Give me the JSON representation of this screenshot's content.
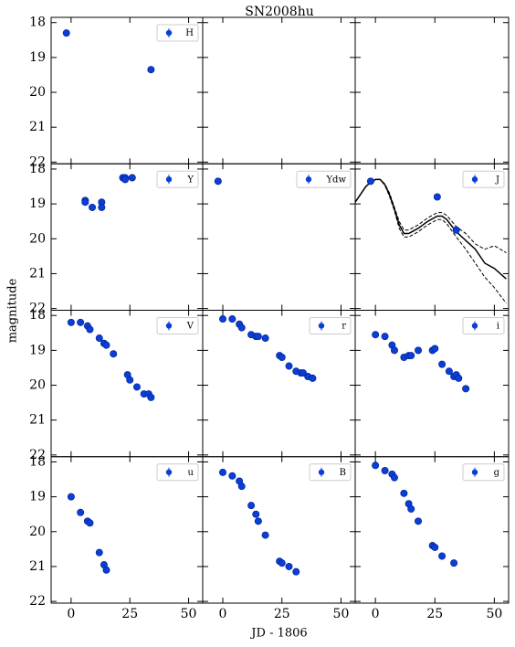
{
  "chart_data": {
    "type": "scatter",
    "title": "SN2008hu",
    "xlabel": "JD - 1806",
    "ylabel": "magnitude",
    "xlim": [
      -8.5,
      56
    ],
    "ylim": [
      22.05,
      17.85
    ],
    "xticks": [
      0,
      25,
      50
    ],
    "yticks": [
      18,
      19,
      20,
      21,
      22
    ],
    "panels": [
      {
        "series": [
          {
            "name": "H",
            "color": "#0a3fd6",
            "x": [
              -2,
              34
            ],
            "values": [
              18.3,
              19.35
            ]
          }
        ]
      },
      {
        "series": []
      },
      {
        "series": []
      },
      {
        "series": [
          {
            "name": "Y",
            "color": "#0a3fd6",
            "x": [
              6,
              6,
              9,
              13,
              13,
              22,
              23,
              23,
              26
            ],
            "values": [
              18.9,
              18.95,
              19.1,
              18.95,
              19.1,
              18.25,
              18.25,
              18.3,
              18.25
            ]
          }
        ]
      },
      {
        "series": [
          {
            "name": "Ydw",
            "color": "#0a3fd6",
            "x": [
              -2
            ],
            "values": [
              18.35
            ]
          }
        ]
      },
      {
        "series": [
          {
            "name": "J",
            "color": "#0a3fd6",
            "x": [
              -2,
              26,
              34
            ],
            "values": [
              18.35,
              18.8,
              19.75
            ]
          }
        ],
        "models": [
          {
            "style": "solid",
            "color": "#000000",
            "x": [
              -8.5,
              -6,
              -4,
              -2,
              0,
              2,
              4,
              6,
              8,
              10,
              12,
              14,
              18,
              22,
              26,
              28,
              30,
              34,
              38,
              42,
              46,
              50,
              55
            ],
            "values": [
              18.95,
              18.7,
              18.5,
              18.38,
              18.3,
              18.3,
              18.45,
              18.75,
              19.15,
              19.6,
              19.85,
              19.85,
              19.7,
              19.5,
              19.35,
              19.35,
              19.45,
              19.8,
              20.05,
              20.3,
              20.7,
              20.85,
              21.15
            ]
          },
          {
            "style": "dashed",
            "color": "#000000",
            "x": [
              -8.5,
              -6,
              -4,
              -2,
              0,
              2,
              4,
              6,
              8,
              10,
              12,
              14,
              18,
              22,
              26,
              28,
              30,
              34,
              38,
              42,
              46,
              50,
              55
            ],
            "values": [
              18.95,
              18.7,
              18.5,
              18.38,
              18.3,
              18.3,
              18.43,
              18.7,
              19.1,
              19.5,
              19.75,
              19.75,
              19.6,
              19.4,
              19.25,
              19.25,
              19.33,
              19.65,
              19.85,
              20.15,
              20.3,
              20.2,
              20.4
            ]
          },
          {
            "style": "dashed",
            "color": "#000000",
            "x": [
              -8.5,
              -6,
              -4,
              -2,
              0,
              2,
              4,
              6,
              8,
              10,
              12,
              14,
              18,
              22,
              26,
              28,
              30,
              34,
              38,
              42,
              46,
              50,
              55
            ],
            "values": [
              18.95,
              18.7,
              18.5,
              18.38,
              18.3,
              18.3,
              18.47,
              18.8,
              19.2,
              19.7,
              19.95,
              19.95,
              19.8,
              19.6,
              19.45,
              19.45,
              19.57,
              19.95,
              20.3,
              20.7,
              21.1,
              21.4,
              21.85
            ]
          }
        ]
      },
      {
        "series": [
          {
            "name": "V",
            "color": "#0a3fd6",
            "x": [
              0,
              4,
              7,
              8,
              12,
              14,
              15,
              18,
              24,
              25,
              28,
              31,
              33,
              34
            ],
            "values": [
              18.2,
              18.2,
              18.3,
              18.4,
              18.65,
              18.8,
              18.85,
              19.1,
              19.7,
              19.85,
              20.05,
              20.25,
              20.25,
              20.35
            ]
          }
        ]
      },
      {
        "series": [
          {
            "name": "r",
            "color": "#0a3fd6",
            "x": [
              0,
              4,
              7,
              8,
              12,
              14,
              15,
              18,
              24,
              25,
              28,
              31,
              33,
              34,
              36,
              38
            ],
            "values": [
              18.1,
              18.1,
              18.25,
              18.35,
              18.55,
              18.6,
              18.6,
              18.65,
              19.15,
              19.2,
              19.45,
              19.6,
              19.65,
              19.65,
              19.75,
              19.8
            ]
          }
        ]
      },
      {
        "series": [
          {
            "name": "i",
            "color": "#0a3fd6",
            "x": [
              0,
              4,
              7,
              8,
              12,
              14,
              15,
              18,
              24,
              25,
              28,
              31,
              33,
              34,
              35,
              38
            ],
            "values": [
              18.55,
              18.6,
              18.85,
              19.0,
              19.2,
              19.15,
              19.15,
              19.0,
              19.0,
              18.95,
              19.4,
              19.6,
              19.75,
              19.7,
              19.8,
              20.1
            ]
          }
        ]
      },
      {
        "series": [
          {
            "name": "u",
            "color": "#0a3fd6",
            "x": [
              0,
              4,
              7,
              8,
              12,
              14,
              15
            ],
            "values": [
              19.0,
              19.45,
              19.7,
              19.75,
              20.6,
              20.95,
              21.1
            ]
          }
        ]
      },
      {
        "series": [
          {
            "name": "B",
            "color": "#0a3fd6",
            "x": [
              0,
              4,
              7,
              8,
              12,
              14,
              15,
              18,
              24,
              25,
              28,
              31
            ],
            "values": [
              18.3,
              18.4,
              18.55,
              18.7,
              19.25,
              19.5,
              19.7,
              20.1,
              20.85,
              20.9,
              21.0,
              21.15
            ]
          }
        ]
      },
      {
        "series": [
          {
            "name": "g",
            "color": "#0a3fd6",
            "x": [
              0,
              4,
              7,
              8,
              12,
              14,
              15,
              18,
              24,
              25,
              28,
              33
            ],
            "values": [
              18.1,
              18.25,
              18.35,
              18.45,
              18.9,
              19.2,
              19.35,
              19.7,
              20.4,
              20.45,
              20.7,
              20.9
            ]
          }
        ]
      }
    ]
  }
}
